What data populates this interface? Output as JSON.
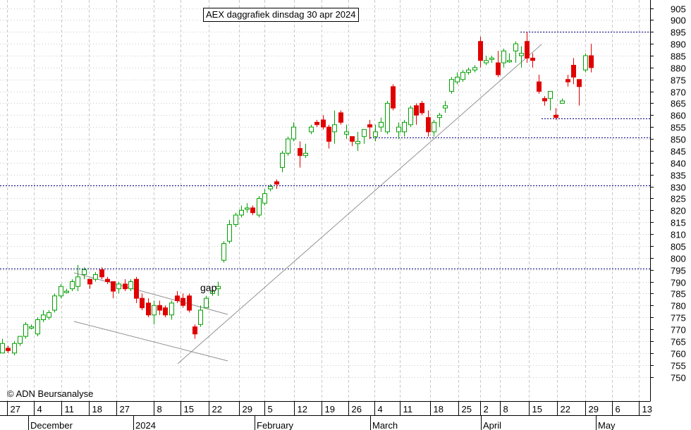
{
  "title": "AEX daggrafiek dinsdag 30 apr 2024",
  "credit": "© ADN Beursanalyse",
  "annotation": "gap",
  "colors": {
    "background": "#ffffff",
    "grid": "#c8c8c8",
    "up": "#00a000",
    "down": "#e00000",
    "support_line": "#000080",
    "trend_line": "#909090",
    "axis": "#000000"
  },
  "chart_data": {
    "type": "candlestick",
    "title": "AEX daggrafiek dinsdag 30 apr 2024",
    "ylim": [
      747,
      910
    ],
    "y_ticks": [
      750,
      755,
      760,
      765,
      770,
      775,
      780,
      785,
      790,
      795,
      800,
      805,
      810,
      815,
      820,
      825,
      830,
      835,
      840,
      845,
      850,
      855,
      860,
      865,
      870,
      875,
      880,
      885,
      890,
      895,
      900,
      905
    ],
    "x_ticks": [
      "27",
      "4",
      "11",
      "18",
      "27",
      "8",
      "15",
      "22",
      "29",
      "5",
      "12",
      "19",
      "26",
      "4",
      "11",
      "18",
      "25",
      "2",
      "8",
      "15",
      "22",
      "29",
      "6",
      "13"
    ],
    "month_labels": [
      "December",
      "2024",
      "February",
      "March",
      "April",
      "May"
    ],
    "grid": true,
    "horizontal_levels": [
      795.5,
      830.5,
      850.5,
      858.5,
      895.0
    ],
    "candles": [
      {
        "o": 760,
        "h": 766,
        "l": 760,
        "c": 764
      },
      {
        "o": 762,
        "h": 763,
        "l": 760,
        "c": 761
      },
      {
        "o": 760,
        "h": 765,
        "l": 759,
        "c": 764
      },
      {
        "o": 764,
        "h": 767,
        "l": 763,
        "c": 767
      },
      {
        "o": 767,
        "h": 773,
        "l": 766,
        "c": 772
      },
      {
        "o": 771,
        "h": 772,
        "l": 770,
        "c": 771
      },
      {
        "o": 768,
        "h": 775,
        "l": 767,
        "c": 774
      },
      {
        "o": 774,
        "h": 778,
        "l": 773,
        "c": 776
      },
      {
        "o": 775,
        "h": 778,
        "l": 774,
        "c": 777
      },
      {
        "o": 778,
        "h": 785,
        "l": 777,
        "c": 784
      },
      {
        "o": 784,
        "h": 789,
        "l": 783,
        "c": 788
      },
      {
        "o": 786,
        "h": 787,
        "l": 785,
        "c": 786
      },
      {
        "o": 787,
        "h": 791,
        "l": 786,
        "c": 790
      },
      {
        "o": 788,
        "h": 797,
        "l": 786,
        "c": 792
      },
      {
        "o": 793,
        "h": 796,
        "l": 791,
        "c": 795
      },
      {
        "o": 791,
        "h": 791,
        "l": 787,
        "c": 789
      },
      {
        "o": 791,
        "h": 794,
        "l": 790,
        "c": 793
      },
      {
        "o": 795,
        "h": 796,
        "l": 791,
        "c": 792
      },
      {
        "o": 791,
        "h": 792,
        "l": 789,
        "c": 790
      },
      {
        "o": 790,
        "h": 790,
        "l": 783,
        "c": 786
      },
      {
        "o": 787,
        "h": 790,
        "l": 785,
        "c": 789
      },
      {
        "o": 789,
        "h": 791,
        "l": 786,
        "c": 787
      },
      {
        "o": 787,
        "h": 791,
        "l": 786,
        "c": 790
      },
      {
        "o": 791,
        "h": 792,
        "l": 781,
        "c": 783
      },
      {
        "o": 783,
        "h": 785,
        "l": 778,
        "c": 779
      },
      {
        "o": 781,
        "h": 783,
        "l": 775,
        "c": 776
      },
      {
        "o": 776,
        "h": 782,
        "l": 772,
        "c": 780
      },
      {
        "o": 780,
        "h": 782,
        "l": 776,
        "c": 778
      },
      {
        "o": 779,
        "h": 780,
        "l": 775,
        "c": 776
      },
      {
        "o": 776,
        "h": 782,
        "l": 774,
        "c": 781
      },
      {
        "o": 784,
        "h": 786,
        "l": 781,
        "c": 782
      },
      {
        "o": 783,
        "h": 785,
        "l": 779,
        "c": 780
      },
      {
        "o": 784,
        "h": 785,
        "l": 777,
        "c": 778
      },
      {
        "o": 771,
        "h": 772,
        "l": 766,
        "c": 768
      },
      {
        "o": 772,
        "h": 780,
        "l": 771,
        "c": 778
      },
      {
        "o": 779,
        "h": 784,
        "l": 779,
        "c": 783
      },
      {
        "o": 785,
        "h": 788,
        "l": 784,
        "c": 786
      },
      {
        "o": 787,
        "h": 790,
        "l": 784,
        "c": 788
      },
      {
        "o": 799,
        "h": 807,
        "l": 798,
        "c": 806
      },
      {
        "o": 807,
        "h": 816,
        "l": 806,
        "c": 814
      },
      {
        "o": 814,
        "h": 819,
        "l": 813,
        "c": 818
      },
      {
        "o": 818,
        "h": 822,
        "l": 817,
        "c": 820
      },
      {
        "o": 821,
        "h": 823,
        "l": 819,
        "c": 821
      },
      {
        "o": 821,
        "h": 822,
        "l": 818,
        "c": 819
      },
      {
        "o": 818,
        "h": 826,
        "l": 817,
        "c": 825
      },
      {
        "o": 823,
        "h": 829,
        "l": 822,
        "c": 827
      },
      {
        "o": 829,
        "h": 831,
        "l": 828,
        "c": 830
      },
      {
        "o": 832,
        "h": 833,
        "l": 829,
        "c": 831
      },
      {
        "o": 838,
        "h": 845,
        "l": 836,
        "c": 844
      },
      {
        "o": 844,
        "h": 851,
        "l": 843,
        "c": 850
      },
      {
        "o": 850,
        "h": 857,
        "l": 849,
        "c": 855
      },
      {
        "o": 846,
        "h": 849,
        "l": 838,
        "c": 843
      },
      {
        "o": 843,
        "h": 848,
        "l": 842,
        "c": 844
      },
      {
        "o": 853,
        "h": 856,
        "l": 852,
        "c": 855
      },
      {
        "o": 857,
        "h": 858,
        "l": 855,
        "c": 856
      },
      {
        "o": 858,
        "h": 860,
        "l": 854,
        "c": 855
      },
      {
        "o": 855,
        "h": 856,
        "l": 846,
        "c": 849
      },
      {
        "o": 853,
        "h": 862,
        "l": 848,
        "c": 856
      },
      {
        "o": 861,
        "h": 862,
        "l": 856,
        "c": 857
      },
      {
        "o": 852,
        "h": 856,
        "l": 850,
        "c": 853
      },
      {
        "o": 851,
        "h": 851,
        "l": 847,
        "c": 849
      },
      {
        "o": 848,
        "h": 853,
        "l": 845,
        "c": 849
      },
      {
        "o": 851,
        "h": 854,
        "l": 848,
        "c": 854
      },
      {
        "o": 856,
        "h": 858,
        "l": 850,
        "c": 855
      },
      {
        "o": 851,
        "h": 856,
        "l": 849,
        "c": 853
      },
      {
        "o": 855,
        "h": 859,
        "l": 853,
        "c": 857
      },
      {
        "o": 853,
        "h": 866,
        "l": 852,
        "c": 865
      },
      {
        "o": 872,
        "h": 873,
        "l": 862,
        "c": 863
      },
      {
        "o": 853,
        "h": 857,
        "l": 850,
        "c": 855
      },
      {
        "o": 853,
        "h": 858,
        "l": 851,
        "c": 857
      },
      {
        "o": 856,
        "h": 864,
        "l": 855,
        "c": 863
      },
      {
        "o": 864,
        "h": 865,
        "l": 856,
        "c": 860
      },
      {
        "o": 865,
        "h": 866,
        "l": 860,
        "c": 861
      },
      {
        "o": 859,
        "h": 862,
        "l": 851,
        "c": 853
      },
      {
        "o": 853,
        "h": 858,
        "l": 851,
        "c": 857
      },
      {
        "o": 859,
        "h": 861,
        "l": 855,
        "c": 860
      },
      {
        "o": 863,
        "h": 866,
        "l": 861,
        "c": 864
      },
      {
        "o": 870,
        "h": 876,
        "l": 869,
        "c": 875
      },
      {
        "o": 874,
        "h": 878,
        "l": 873,
        "c": 876
      },
      {
        "o": 875,
        "h": 879,
        "l": 874,
        "c": 878
      },
      {
        "o": 878,
        "h": 880,
        "l": 877,
        "c": 879
      },
      {
        "o": 879,
        "h": 881,
        "l": 878,
        "c": 880
      },
      {
        "o": 891,
        "h": 893,
        "l": 880,
        "c": 883
      },
      {
        "o": 882,
        "h": 885,
        "l": 881,
        "c": 883
      },
      {
        "o": 884,
        "h": 885,
        "l": 882,
        "c": 884
      },
      {
        "o": 882,
        "h": 887,
        "l": 876,
        "c": 877
      },
      {
        "o": 882,
        "h": 888,
        "l": 880,
        "c": 887
      },
      {
        "o": 883,
        "h": 886,
        "l": 882,
        "c": 883
      },
      {
        "o": 887,
        "h": 891,
        "l": 882,
        "c": 890
      },
      {
        "o": 885,
        "h": 889,
        "l": 880,
        "c": 886
      },
      {
        "o": 891,
        "h": 895,
        "l": 882,
        "c": 884
      },
      {
        "o": 884,
        "h": 886,
        "l": 880,
        "c": 883
      },
      {
        "o": 874,
        "h": 877,
        "l": 869,
        "c": 870
      },
      {
        "o": 867,
        "h": 868,
        "l": 864,
        "c": 866
      },
      {
        "o": 867,
        "h": 870,
        "l": 862,
        "c": 870
      },
      {
        "o": 860,
        "h": 863,
        "l": 858,
        "c": 859
      },
      {
        "o": 865,
        "h": 867,
        "l": 865,
        "c": 866
      },
      {
        "o": 875,
        "h": 877,
        "l": 872,
        "c": 874
      },
      {
        "o": 881,
        "h": 884,
        "l": 873,
        "c": 876
      },
      {
        "o": 875,
        "h": 875,
        "l": 864,
        "c": 872
      },
      {
        "o": 879,
        "h": 886,
        "l": 878,
        "c": 885
      },
      {
        "o": 885,
        "h": 890,
        "l": 878,
        "c": 880
      }
    ]
  }
}
